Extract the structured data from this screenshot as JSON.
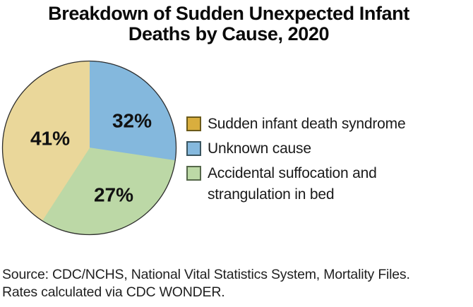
{
  "title": {
    "line1": "Breakdown of Sudden Unexpected Infant",
    "line2": "Deaths by Cause, 2020"
  },
  "chart_data": {
    "type": "pie",
    "title": "Breakdown of Sudden Unexpected Infant Deaths by Cause, 2020",
    "slices": [
      {
        "id": "unknown-cause",
        "label": "Unknown cause",
        "value": 32,
        "value_label": "32%",
        "color": "#84B8DD",
        "start_angle": 0,
        "end_angle": 98.5,
        "label_x": 187,
        "label_y": 171
      },
      {
        "id": "accidental-suffocation",
        "label": "Accidental suffocation and strangulation in bed",
        "value": 27,
        "value_label": "27%",
        "color": "#BCD8A6",
        "start_angle": 98.5,
        "end_angle": 213,
        "label_x": 161,
        "label_y": 276
      },
      {
        "id": "sids",
        "label": "Sudden infant death syndrome",
        "value": 41,
        "value_label": "41%",
        "color": "#EAD79A",
        "start_angle": 213,
        "end_angle": 360,
        "label_x": 71,
        "label_y": 196
      }
    ],
    "geometry": {
      "cx": 126.5,
      "cy": 209.5,
      "r": 123,
      "outline_color": "#2e2e2e",
      "outline_width": 1.3
    },
    "legend_position": "right",
    "grid": false
  },
  "legend": {
    "items": [
      {
        "label": "Sudden infant death syndrome",
        "fill": "#D9AE3E",
        "border": "#6b5a1a"
      },
      {
        "label": "Unknown cause",
        "fill": "#85B9DE",
        "border": "#3a5560"
      },
      {
        "label": "Accidental suffocation and strangulation in bed",
        "fill": "#BCD9A6",
        "border": "#55684a"
      }
    ]
  },
  "source": {
    "line1": "Source: CDC/NCHS, National Vital Statistics System, Mortality Files.",
    "line2": "Rates calculated via CDC WONDER."
  }
}
